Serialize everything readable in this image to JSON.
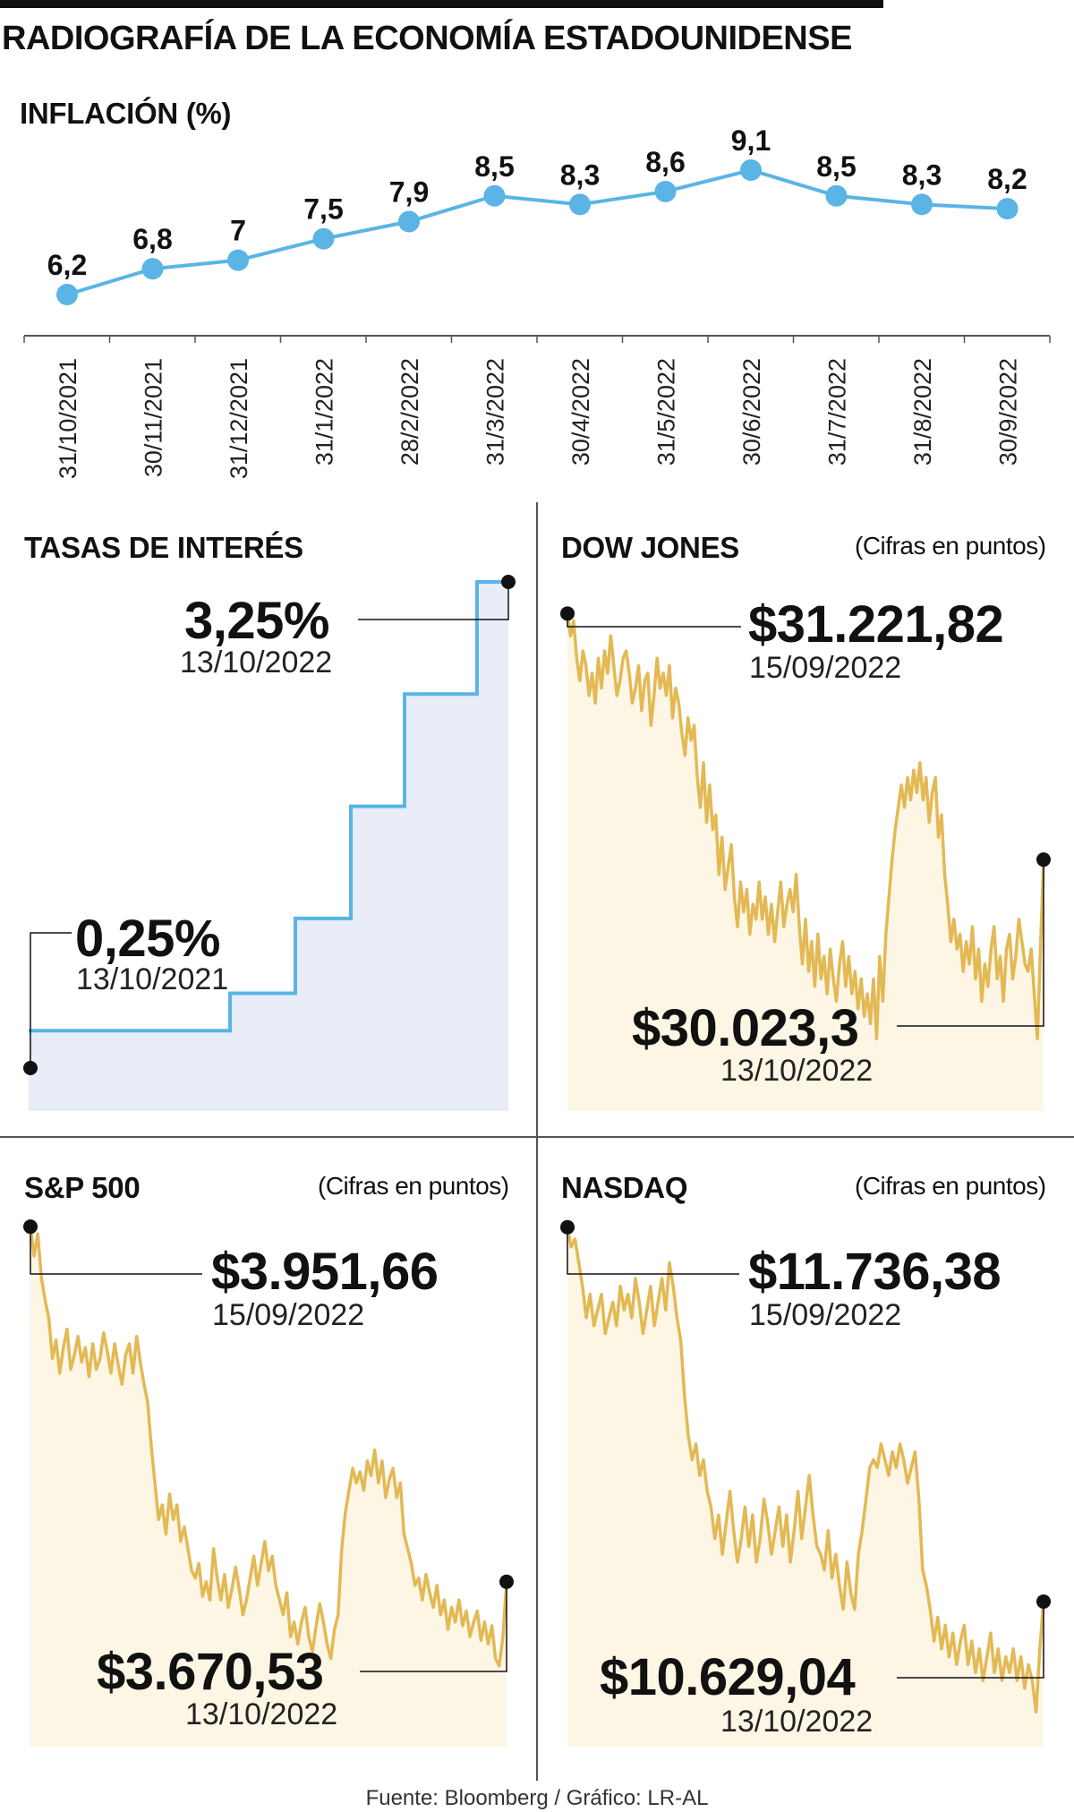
{
  "title": "RADIOGRAFÍA DE LA ECONOMÍA ESTADOUNIDENSE",
  "source": "Fuente: Bloomberg / Gráfico: LR-AL",
  "colors": {
    "inflation": "#5ab4e5",
    "rates_line": "#5ab4e5",
    "rates_fill": "#e8edf8",
    "stock_line": "#e3b955",
    "stock_fill": "#fdf6e4",
    "marker": "#111111"
  },
  "inflation": {
    "title": "INFLACIÓN (%)",
    "chart_data": {
      "type": "line",
      "title": "INFLACIÓN (%)",
      "categories": [
        "31/10/2021",
        "30/11/2021",
        "31/12/2021",
        "31/1/2022",
        "28/2/2022",
        "31/3/2022",
        "30/4/2022",
        "31/5/2022",
        "30/6/2022",
        "31/7/2022",
        "31/8/2022",
        "30/9/2022"
      ],
      "values": [
        6.2,
        6.8,
        7,
        7.5,
        7.9,
        8.5,
        8.3,
        8.6,
        9.1,
        8.5,
        8.3,
        8.2
      ],
      "labels": [
        "6,2",
        "6,8",
        "7",
        "7,5",
        "7,9",
        "8,5",
        "8,3",
        "8,6",
        "9,1",
        "8,5",
        "8,3",
        "8,2"
      ],
      "ylabel": "%",
      "ylim": [
        6.2,
        9.1
      ]
    }
  },
  "rates": {
    "title": "TASAS DE INTERÉS",
    "end_value": "3,25%",
    "end_date": "13/10/2022",
    "start_value": "0,25%",
    "start_date": "13/10/2021",
    "chart_data": {
      "type": "area",
      "title": "TASAS DE INTERÉS",
      "step": true,
      "x": [
        "13/10/2021",
        "17/3/2022",
        "5/5/2022",
        "16/6/2022",
        "28/7/2022",
        "22/9/2022",
        "13/10/2022"
      ],
      "values": [
        0.25,
        0.5,
        1.0,
        1.75,
        2.5,
        3.25,
        3.25
      ],
      "ylim": [
        0,
        3.25
      ]
    }
  },
  "dow": {
    "title": "DOW JONES",
    "note": "(Cifras en puntos)",
    "high_value": "$31.221,82",
    "high_date": "15/09/2022",
    "low_value": "$30.023,3",
    "low_date": "13/10/2022",
    "chart_data": {
      "type": "area",
      "title": "DOW JONES",
      "values": [
        36400,
        36100,
        36300,
        35800,
        35500,
        35900,
        35700,
        35300,
        35600,
        35200,
        35800,
        35400,
        35900,
        35600,
        36100,
        35700,
        35300,
        35500,
        35800,
        35900,
        35600,
        35200,
        35400,
        35700,
        35100,
        35500,
        35600,
        34900,
        35300,
        35800,
        35400,
        35600,
        35300,
        35700,
        35000,
        35400,
        35200,
        34800,
        34500,
        35000,
        34700,
        34900,
        34200,
        33800,
        34400,
        33600,
        34100,
        33500,
        33700,
        32900,
        33400,
        32700,
        33000,
        33300,
        32600,
        32200,
        32800,
        32400,
        32700,
        32100,
        32500,
        32300,
        32800,
        32300,
        32600,
        32100,
        32500,
        32000,
        32400,
        32800,
        32200,
        32500,
        32700,
        32400,
        32900,
        32200,
        31700,
        32300,
        31600,
        32000,
        31400,
        32100,
        31500,
        31800,
        31300,
        31900,
        31500,
        31200,
        31700,
        32000,
        31400,
        31800,
        31300,
        31600,
        31100,
        31500,
        31000,
        31300,
        30900,
        31500,
        30700,
        31800,
        31200,
        32100,
        32600,
        33100,
        33500,
        33800,
        34100,
        33800,
        34200,
        33900,
        34300,
        34000,
        34400,
        33900,
        34200,
        33600,
        34000,
        34200,
        33400,
        33700,
        32900,
        32500,
        32000,
        32300,
        31900,
        32100,
        31600,
        32000,
        31700,
        32200,
        31500,
        31900,
        31200,
        31700,
        31400,
        31900,
        32200,
        31500,
        31800,
        31200,
        31900,
        32100,
        31500,
        31800,
        32300,
        32000,
        31700,
        31600,
        31900,
        31300,
        30700,
        31900,
        33100
      ],
      "ylim": [
        29500,
        36800
      ]
    }
  },
  "sp500": {
    "title": "S&P 500",
    "note": "(Cifras en puntos)",
    "high_value": "$3.951,66",
    "high_date": "15/09/2022",
    "low_value": "$3.670,53",
    "low_date": "13/10/2022",
    "chart_data": {
      "type": "area",
      "title": "S&P 500",
      "values": [
        4780,
        4700,
        4760,
        4640,
        4580,
        4530,
        4420,
        4470,
        4380,
        4450,
        4500,
        4390,
        4430,
        4480,
        4410,
        4450,
        4370,
        4460,
        4390,
        4420,
        4490,
        4440,
        4380,
        4460,
        4400,
        4350,
        4430,
        4460,
        4380,
        4480,
        4410,
        4350,
        4300,
        4180,
        4080,
        3980,
        4020,
        3940,
        4050,
        3980,
        4020,
        3920,
        3960,
        3900,
        3840,
        3820,
        3860,
        3770,
        3810,
        3760,
        3900,
        3820,
        3760,
        3830,
        3740,
        3790,
        3850,
        3790,
        3720,
        3760,
        3820,
        3880,
        3800,
        3860,
        3920,
        3840,
        3880,
        3800,
        3760,
        3720,
        3780,
        3660,
        3700,
        3640,
        3700,
        3740,
        3660,
        3620,
        3690,
        3750,
        3700,
        3640,
        3600,
        3680,
        3720,
        3900,
        4000,
        4060,
        4120,
        4080,
        4110,
        4060,
        4140,
        4100,
        4170,
        4080,
        4140,
        4040,
        4090,
        4120,
        4040,
        4080,
        3940,
        3900,
        3860,
        3800,
        3820,
        3760,
        3830,
        3780,
        3740,
        3800,
        3720,
        3760,
        3680,
        3740,
        3700,
        3760,
        3690,
        3730,
        3660,
        3700,
        3730,
        3650,
        3700,
        3640,
        3690,
        3600,
        3580,
        3660,
        3810
      ],
      "ylim": [
        3450,
        4800
      ]
    }
  },
  "nasdaq": {
    "title": "NASDAQ",
    "note": "(Cifras en puntos)",
    "high_value": "$11.736,38",
    "high_date": "15/09/2022",
    "low_value": "$10.629,04",
    "low_date": "13/10/2022",
    "chart_data": {
      "type": "area",
      "title": "NASDAQ",
      "values": [
        16050,
        15800,
        15900,
        15600,
        15300,
        14900,
        15200,
        14800,
        15000,
        15200,
        14700,
        14900,
        15100,
        14800,
        15300,
        15000,
        15200,
        14900,
        15400,
        15100,
        14700,
        15000,
        15300,
        14800,
        15100,
        15400,
        15000,
        15600,
        15300,
        14900,
        14600,
        13900,
        13400,
        13100,
        13300,
        12900,
        13100,
        12700,
        12500,
        12100,
        12400,
        11900,
        12300,
        12700,
        12200,
        11800,
        12100,
        12500,
        12000,
        12400,
        11800,
        12100,
        12600,
        12300,
        11900,
        12200,
        12500,
        12000,
        12400,
        11800,
        12200,
        12700,
        12100,
        12500,
        12900,
        12400,
        12000,
        11900,
        11700,
        12200,
        11600,
        11900,
        11500,
        11200,
        11800,
        11400,
        11200,
        11900,
        12200,
        12600,
        13000,
        13100,
        13000,
        13300,
        13100,
        12900,
        13200,
        13000,
        13300,
        13100,
        12800,
        13000,
        13200,
        12600,
        11700,
        11500,
        11200,
        10800,
        11100,
        10700,
        11000,
        10600,
        10900,
        10500,
        10800,
        11000,
        10500,
        10800,
        10400,
        10700,
        10300,
        10600,
        10900,
        10400,
        10700,
        10300,
        10600,
        10400,
        10700,
        10300,
        10600,
        10200,
        10500,
        10300,
        9900,
        10700,
        11300
      ],
      "ylim": [
        9300,
        16150
      ]
    }
  }
}
